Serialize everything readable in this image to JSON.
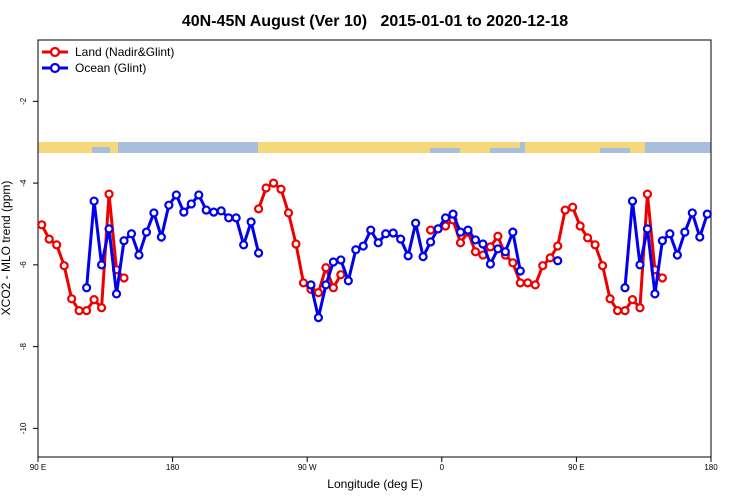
{
  "chart_data": {
    "type": "line",
    "title": "40N-45N August (Ver 10)   2015-01-01 to 2020-12-18",
    "x_label": "Longitude (deg E)",
    "y_label": "XCO2 - MLO trend (ppm)",
    "xlim": [
      90,
      540
    ],
    "ylim": [
      -10.7,
      -0.5
    ],
    "xticks": [
      {
        "value": 90,
        "label": "90 E"
      },
      {
        "value": 180,
        "label": "180"
      },
      {
        "value": 270,
        "label": "90 W"
      },
      {
        "value": 360,
        "label": "0"
      },
      {
        "value": 450,
        "label": "90 E"
      },
      {
        "value": 540,
        "label": "180"
      }
    ],
    "yticks": [
      -2,
      -4,
      -6,
      -8,
      -10
    ],
    "legend": "top-left",
    "x": [
      92.5,
      97.5,
      102.5,
      107.5,
      112.5,
      117.5,
      122.5,
      127.5,
      132.5,
      137.5,
      142.5,
      147.5,
      152.5,
      157.5,
      162.5,
      167.5,
      172.5,
      177.5,
      182.5,
      187.5,
      192.5,
      197.5,
      202.5,
      207.5,
      212.5,
      217.5,
      222.5,
      227.5,
      232.5,
      237.5,
      242.5,
      247.5,
      252.5,
      257.5,
      262.5,
      267.5,
      272.5,
      277.5,
      282.5,
      287.5,
      292.5,
      297.5,
      302.5,
      307.5,
      312.5,
      317.5,
      322.5,
      327.5,
      332.5,
      337.5,
      342.5,
      347.5,
      352.5,
      357.5,
      362.5,
      367.5,
      372.5,
      377.5,
      382.5,
      387.5,
      392.5,
      397.5,
      402.5,
      407.5,
      412.5,
      417.5,
      422.5,
      427.5,
      432.5,
      437.5,
      442.5,
      447.5,
      452.5,
      457.5,
      462.5,
      467.5,
      472.5,
      477.5,
      482.5,
      487.5,
      492.5,
      497.5,
      502.5,
      507.5,
      512.5,
      517.5,
      522.5,
      527.5,
      532.5,
      537.5
    ],
    "series": [
      {
        "name": "Land (Nadir&Glint)",
        "color": "#ee0000",
        "values": [
          -5.02,
          -5.37,
          -5.51,
          -6.02,
          -6.83,
          -7.12,
          -7.12,
          -6.85,
          -7.05,
          -4.27,
          -6.12,
          -6.32,
          null,
          null,
          null,
          null,
          null,
          null,
          null,
          null,
          null,
          null,
          null,
          null,
          null,
          null,
          null,
          null,
          null,
          -4.63,
          -4.12,
          -4.0,
          -4.15,
          -4.73,
          -5.49,
          -6.44,
          -6.6,
          -6.68,
          -6.07,
          -6.56,
          -6.24,
          null,
          null,
          null,
          null,
          null,
          null,
          null,
          null,
          null,
          null,
          null,
          -5.15,
          -5.12,
          -5.05,
          -4.9,
          -5.46,
          -5.2,
          -5.68,
          -5.76,
          -5.56,
          -5.3,
          -5.76,
          -5.95,
          -6.44,
          -6.44,
          -6.49,
          -6.02,
          -5.83,
          -5.54,
          -4.66,
          -4.59,
          -5.05,
          -5.34,
          -5.51,
          -6.02,
          -6.83,
          -7.12,
          -7.12,
          -6.85,
          -7.05,
          -4.27,
          -6.12,
          -6.32,
          null,
          null,
          null,
          null,
          null,
          null
        ]
      },
      {
        "name": "Ocean (Glint)",
        "color": "#0000ee",
        "values": [
          null,
          null,
          null,
          null,
          null,
          null,
          -6.56,
          -4.44,
          -6.0,
          -5.12,
          -6.71,
          -5.41,
          -5.24,
          -5.76,
          -5.2,
          -4.73,
          -5.32,
          -4.54,
          -4.29,
          -4.71,
          -4.51,
          -4.29,
          -4.66,
          -4.71,
          -4.68,
          -4.85,
          -4.85,
          -5.51,
          -4.95,
          -5.71,
          null,
          null,
          null,
          null,
          null,
          null,
          -6.49,
          -7.29,
          -6.49,
          -5.93,
          -5.88,
          -6.39,
          -5.63,
          -5.54,
          -5.15,
          -5.46,
          -5.24,
          -5.22,
          -5.37,
          -5.78,
          -4.98,
          -5.8,
          -5.44,
          -5.12,
          -4.85,
          -4.76,
          -5.2,
          -5.15,
          -5.39,
          -5.49,
          -5.98,
          -5.61,
          -5.68,
          -5.2,
          -6.15,
          null,
          null,
          null,
          null,
          -5.9,
          null,
          null,
          null,
          null,
          null,
          null,
          null,
          null,
          -6.56,
          -4.44,
          -6.0,
          -5.12,
          -6.71,
          -5.41,
          -5.24,
          -5.76,
          -5.2,
          -4.73,
          -5.32,
          -4.76
        ]
      }
    ]
  }
}
